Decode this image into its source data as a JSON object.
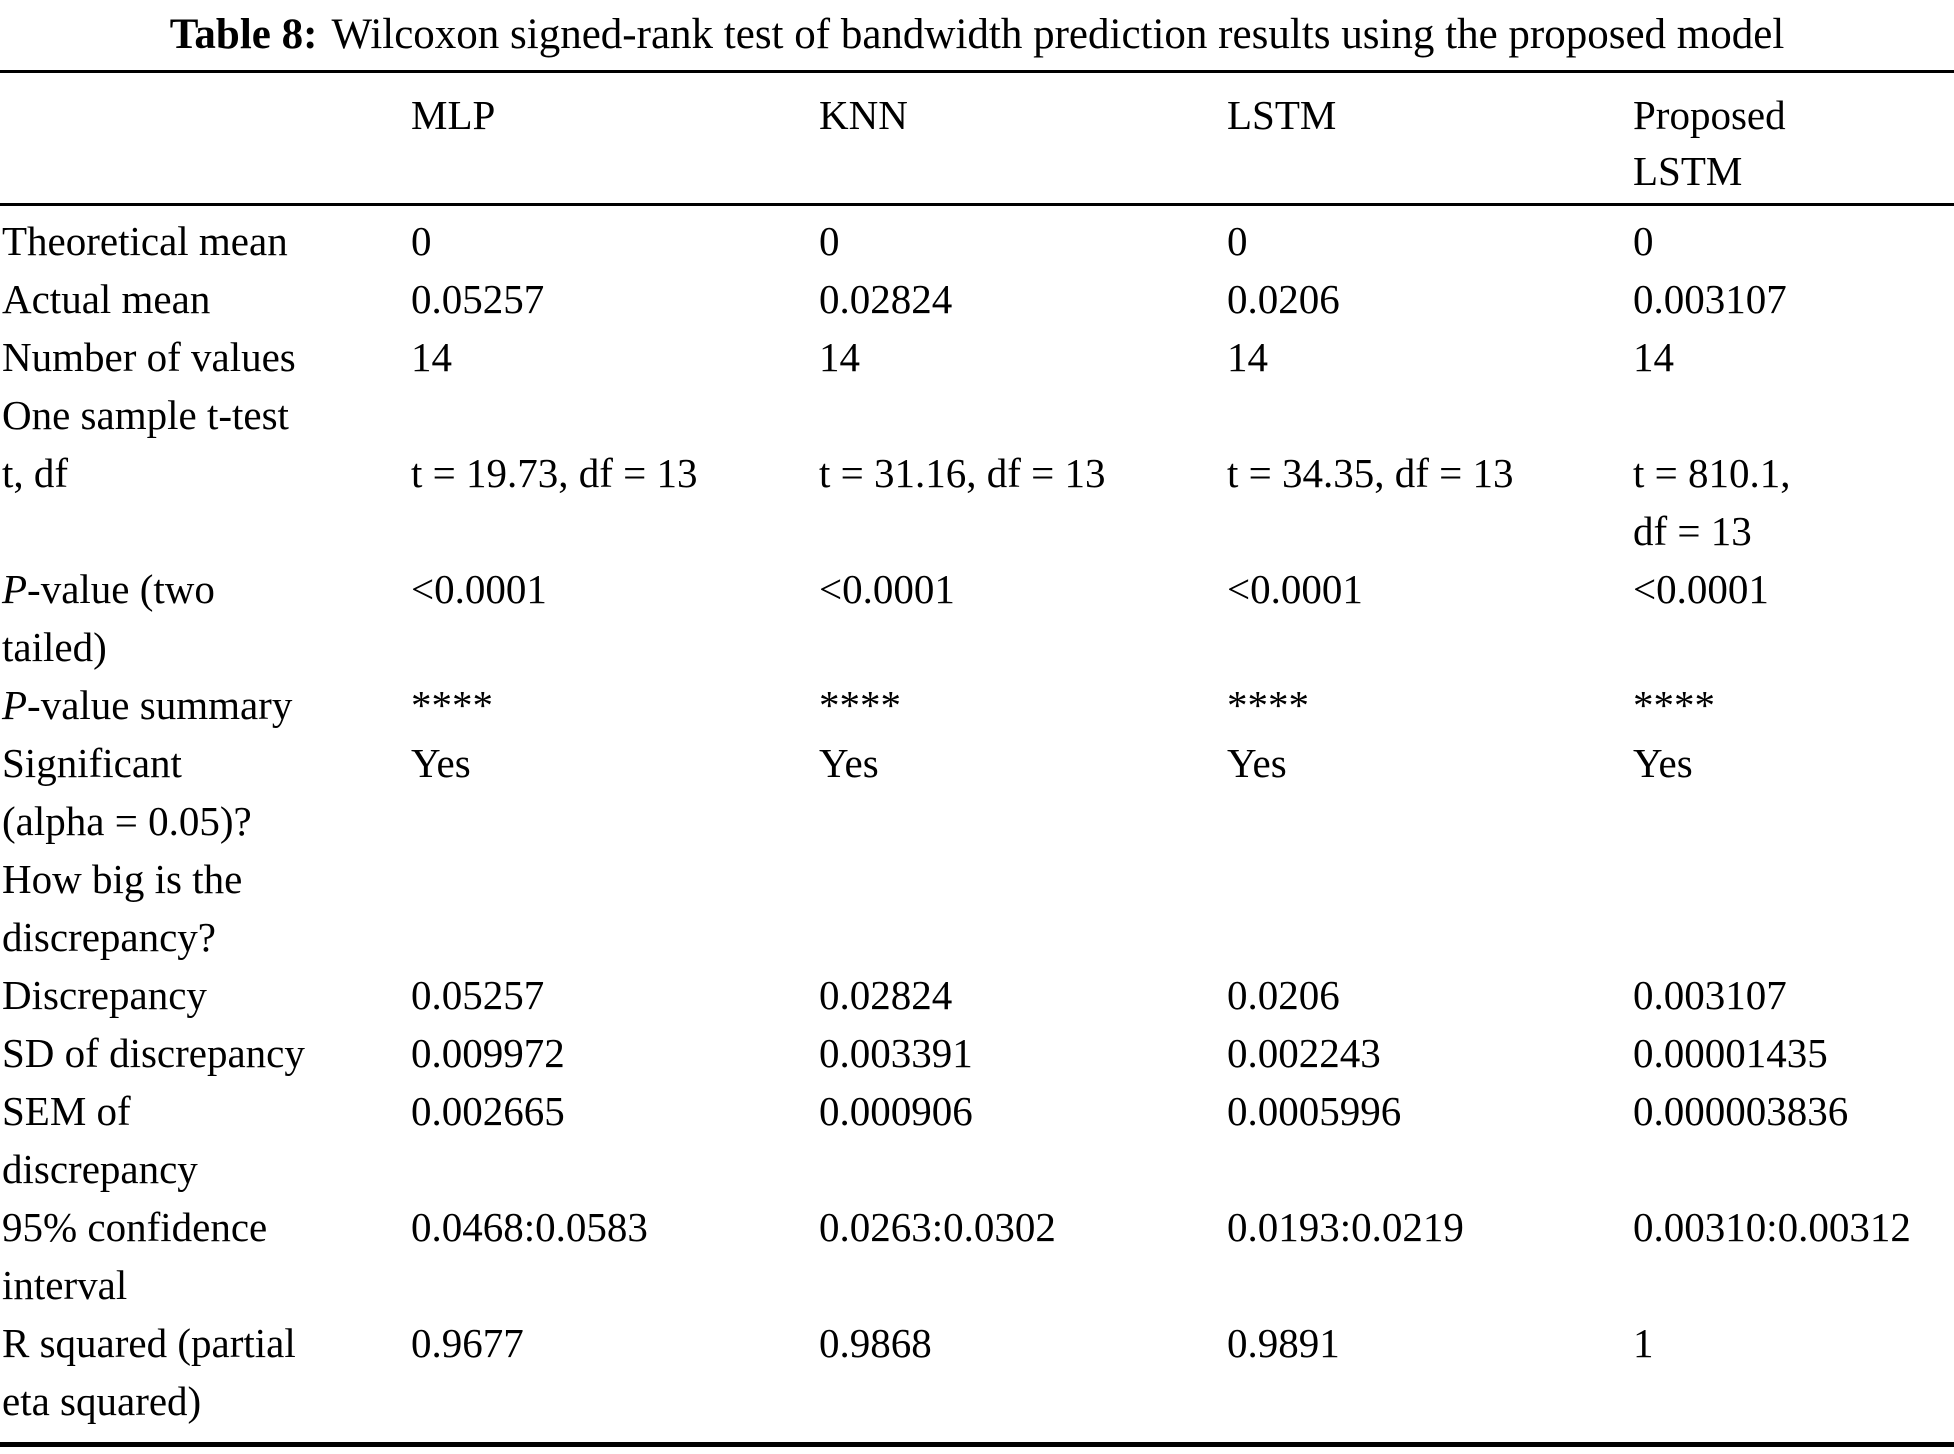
{
  "caption": {
    "label": "Table 8:",
    "text": "Wilcoxon signed-rank test of bandwidth prediction results using the proposed model"
  },
  "table": {
    "columns": [
      "",
      "MLP",
      "KNN",
      "LSTM",
      "Proposed\nLSTM"
    ],
    "rows": [
      {
        "label": "Theoretical mean",
        "values": [
          "0",
          "0",
          "0",
          "0"
        ]
      },
      {
        "label": "Actual mean",
        "values": [
          "0.05257",
          "0.02824",
          "0.0206",
          "0.003107"
        ]
      },
      {
        "label": "Number of values",
        "values": [
          "14",
          "14",
          "14",
          "14"
        ]
      },
      {
        "label": "One sample t-test",
        "section": true,
        "values": [
          "",
          "",
          "",
          ""
        ]
      },
      {
        "label": "t, df",
        "values": [
          "t = 19.73, df = 13",
          "t = 31.16, df = 13",
          "t = 34.35, df = 13",
          "t = 810.1,\ndf = 13"
        ]
      },
      {
        "label": "P-value (two\ntailed)",
        "italic_prefix": "P",
        "values": [
          "<0.0001",
          "<0.0001",
          "<0.0001",
          "<0.0001"
        ]
      },
      {
        "label": "P-value summary",
        "italic_prefix": "P",
        "values": [
          "****",
          "****",
          "****",
          "****"
        ]
      },
      {
        "label": "Significant\n(alpha = 0.05)?",
        "values": [
          "Yes",
          "Yes",
          "Yes",
          "Yes"
        ]
      },
      {
        "label": "How big is the\ndiscrepancy?",
        "section": true,
        "values": [
          "",
          "",
          "",
          ""
        ]
      },
      {
        "label": "Discrepancy",
        "values": [
          "0.05257",
          "0.02824",
          "0.0206",
          "0.003107"
        ]
      },
      {
        "label": "SD of discrepancy",
        "values": [
          "0.009972",
          "0.003391",
          "0.002243",
          "0.00001435"
        ]
      },
      {
        "label": "SEM of\ndiscrepancy",
        "values": [
          "0.002665",
          "0.000906",
          "0.0005996",
          "0.000003836"
        ]
      },
      {
        "label": "95% confidence\ninterval",
        "values": [
          "0.0468:0.0583",
          "0.0263:0.0302",
          "0.0193:0.0219",
          "0.00310:0.00312"
        ]
      },
      {
        "label": "R squared (partial\neta squared)",
        "values": [
          "0.9677",
          "0.9868",
          "0.9891",
          "1"
        ]
      }
    ]
  }
}
